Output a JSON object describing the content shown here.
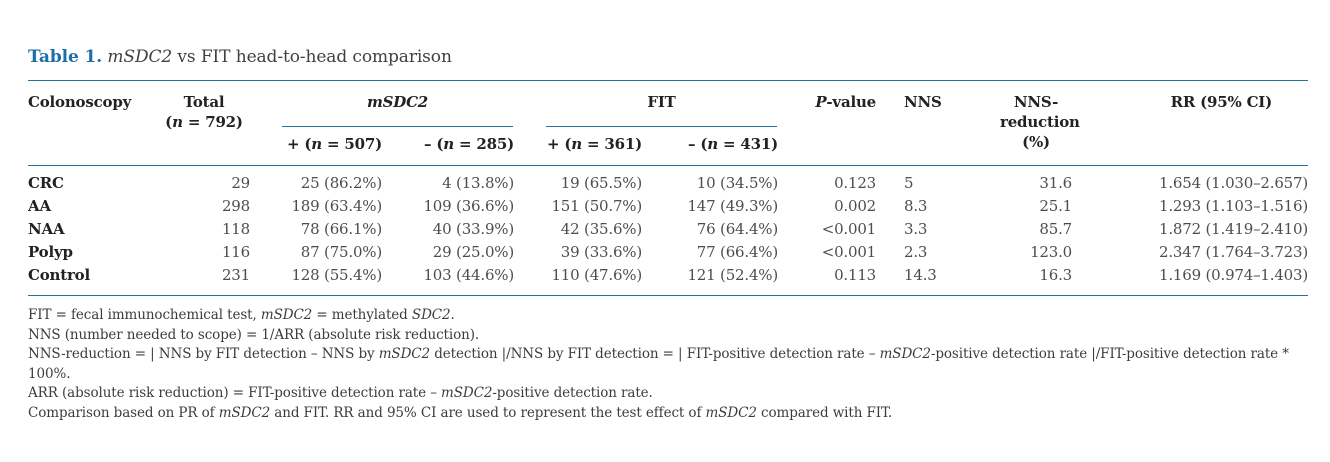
{
  "title": {
    "label": "Table 1.",
    "rest": [
      {
        "t": " "
      },
      {
        "t": "mSDC2",
        "i": true
      },
      {
        "t": " vs FIT head-to-head comparison"
      }
    ]
  },
  "table": {
    "header": {
      "colonoscopy": [
        {
          "t": "Colonoscopy"
        }
      ],
      "total_line1": [
        {
          "t": "Total"
        }
      ],
      "total_line2": [
        {
          "t": "("
        },
        {
          "t": "n",
          "i": true
        },
        {
          "t": " = 792)"
        }
      ],
      "msdc2_group": [
        {
          "t": "mSDC2",
          "i": true
        }
      ],
      "fit_group": [
        {
          "t": "FIT"
        }
      ],
      "msdc2_pos": [
        {
          "t": "+ ("
        },
        {
          "t": "n",
          "i": true
        },
        {
          "t": " = 507)"
        }
      ],
      "msdc2_neg": [
        {
          "t": "– ("
        },
        {
          "t": "n",
          "i": true
        },
        {
          "t": " = 285)"
        }
      ],
      "fit_pos": [
        {
          "t": "+ ("
        },
        {
          "t": "n",
          "i": true
        },
        {
          "t": " = 361)"
        }
      ],
      "fit_neg": [
        {
          "t": "– ("
        },
        {
          "t": "n",
          "i": true
        },
        {
          "t": " = 431)"
        }
      ],
      "p_value": [
        {
          "t": "P",
          "i": true
        },
        {
          "t": "-value"
        }
      ],
      "nns": [
        {
          "t": "NNS"
        }
      ],
      "nns_reduction_line1": [
        {
          "t": "NNS-reduction"
        }
      ],
      "nns_reduction_line2": [
        {
          "t": "(%)"
        }
      ],
      "rr": [
        {
          "t": "RR (95% CI)"
        }
      ]
    },
    "rows": [
      {
        "label": "CRC",
        "cells": [
          "29",
          "25 (86.2%)",
          "4 (13.8%)",
          "19 (65.5%)",
          "10 (34.5%)",
          "0.123",
          "5",
          "31.6",
          "1.654 (1.030–2.657)"
        ]
      },
      {
        "label": "AA",
        "cells": [
          "298",
          "189 (63.4%)",
          "109 (36.6%)",
          "151 (50.7%)",
          "147 (49.3%)",
          "0.002",
          "8.3",
          "25.1",
          "1.293 (1.103–1.516)"
        ]
      },
      {
        "label": "NAA",
        "cells": [
          "118",
          "78 (66.1%)",
          "40 (33.9%)",
          "42 (35.6%)",
          "76 (64.4%)",
          "<0.001",
          "3.3",
          "85.7",
          "1.872 (1.419–2.410)"
        ]
      },
      {
        "label": "Polyp",
        "cells": [
          "116",
          "87 (75.0%)",
          "29 (25.0%)",
          "39 (33.6%)",
          "77 (66.4%)",
          "<0.001",
          "2.3",
          "123.0",
          "2.347 (1.764–3.723)"
        ]
      },
      {
        "label": "Control",
        "cells": [
          "231",
          "128 (55.4%)",
          "103 (44.6%)",
          "110 (47.6%)",
          "121 (52.4%)",
          "0.113",
          "14.3",
          "16.3",
          "1.169 (0.974–1.403)"
        ]
      }
    ]
  },
  "footnotes": [
    [
      {
        "t": "FIT = fecal immunochemical test, "
      },
      {
        "t": "mSDC2",
        "i": true
      },
      {
        "t": " = methylated "
      },
      {
        "t": "SDC2",
        "i": true
      },
      {
        "t": "."
      }
    ],
    [
      {
        "t": "NNS (number needed to scope) = 1/ARR (absolute risk reduction)."
      }
    ],
    [
      {
        "t": "NNS-reduction = | NNS by FIT detection – NNS by "
      },
      {
        "t": "mSDC2",
        "i": true
      },
      {
        "t": " detection |/NNS by FIT detection = | FIT-positive detection rate – "
      },
      {
        "t": "mSDC2",
        "i": true
      },
      {
        "t": "-positive detection rate |/FIT-positive detection rate * 100%."
      }
    ],
    [
      {
        "t": "ARR (absolute risk reduction) = FIT-positive detection rate – "
      },
      {
        "t": "mSDC2",
        "i": true
      },
      {
        "t": "-positive detection rate."
      }
    ],
    [
      {
        "t": "Comparison based on PR of "
      },
      {
        "t": "mSDC2",
        "i": true
      },
      {
        "t": " and FIT. RR and 95% CI are used to represent the test effect of "
      },
      {
        "t": "mSDC2",
        "i": true
      },
      {
        "t": " compared with FIT."
      }
    ]
  ]
}
